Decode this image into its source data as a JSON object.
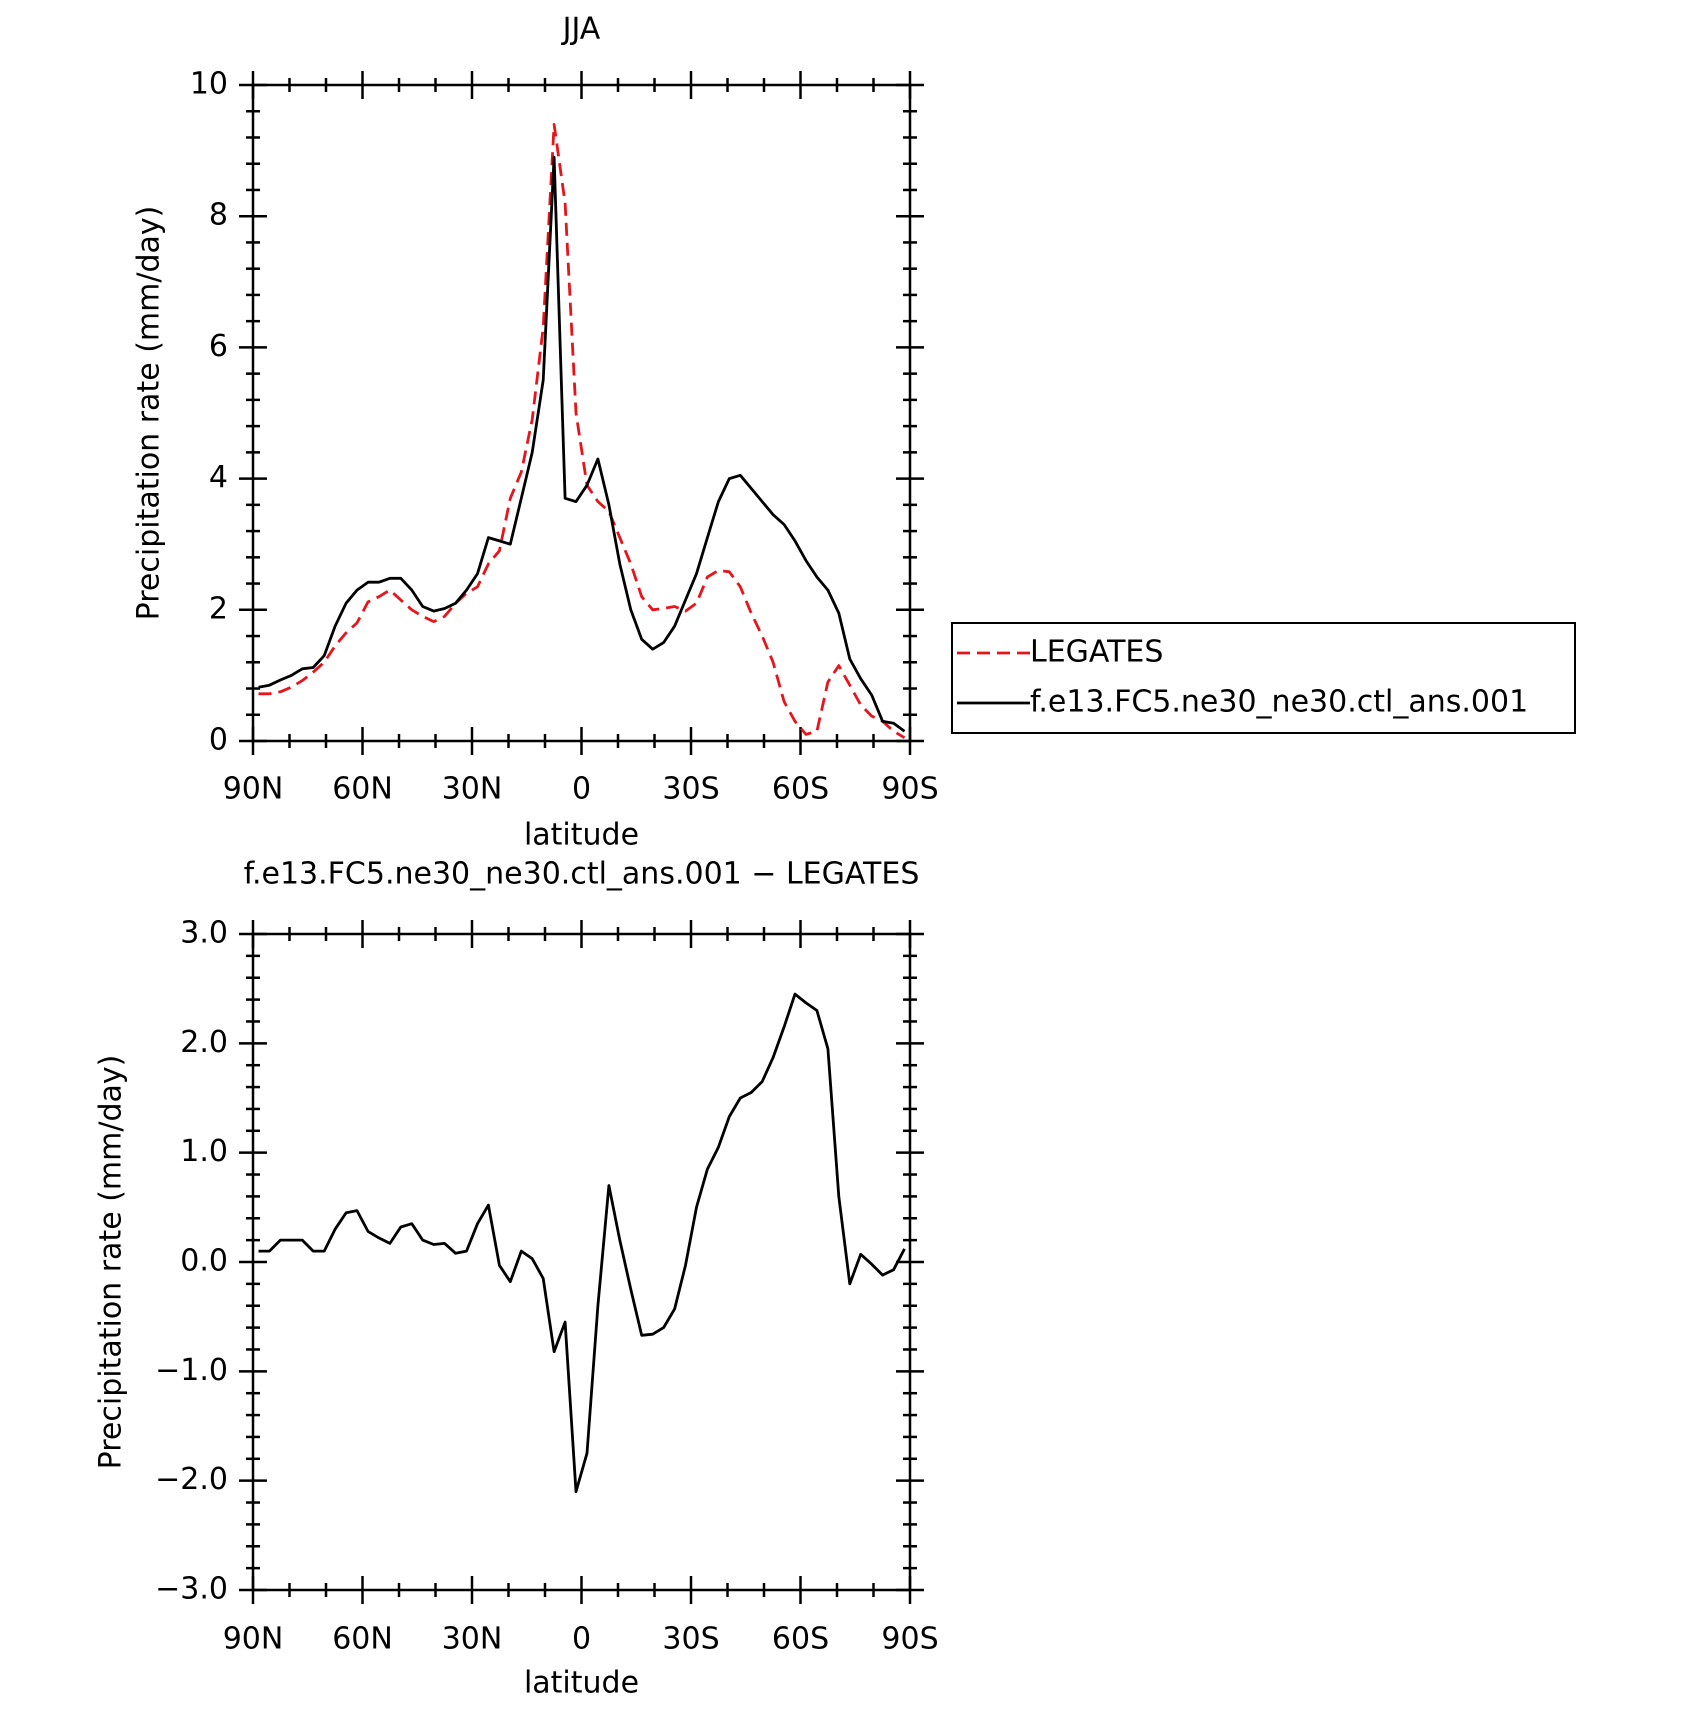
{
  "chart_data": [
    {
      "type": "line",
      "title": "JJA",
      "xlabel": "latitude",
      "ylabel": "Precipitation rate (mm/day)",
      "x": [
        88.5,
        85.5,
        82.5,
        79.5,
        76.5,
        73.5,
        70.5,
        67.5,
        64.5,
        61.5,
        58.5,
        55.5,
        52.5,
        49.5,
        46.5,
        43.5,
        40.5,
        37.5,
        34.5,
        31.5,
        28.5,
        25.5,
        22.5,
        19.5,
        16.5,
        13.5,
        10.5,
        7.5,
        4.5,
        1.5,
        -1.5,
        -4.5,
        -7.5,
        -10.5,
        -13.5,
        -16.5,
        -19.5,
        -22.5,
        -25.5,
        -28.5,
        -31.5,
        -34.5,
        -37.5,
        -40.5,
        -43.5,
        -46.5,
        -49.5,
        -52.5,
        -55.5,
        -58.5,
        -61.5,
        -64.5,
        -67.5,
        -70.5,
        -73.5,
        -76.5,
        -79.5,
        -82.5,
        -85.5,
        -88.5
      ],
      "series": [
        {
          "name": "LEGATES",
          "color": "#e8141b",
          "dashed": true,
          "values": [
            0.72,
            0.72,
            0.75,
            0.82,
            0.92,
            1.05,
            1.2,
            1.45,
            1.65,
            1.8,
            2.12,
            2.2,
            2.3,
            2.15,
            2.0,
            1.9,
            1.82,
            1.9,
            2.1,
            2.25,
            2.35,
            2.7,
            2.9,
            3.7,
            4.1,
            4.9,
            6.3,
            9.4,
            8.2,
            5.0,
            3.9,
            3.65,
            3.5,
            3.1,
            2.7,
            2.2,
            2.0,
            2.02,
            2.05,
            1.98,
            2.1,
            2.5,
            2.6,
            2.58,
            2.35,
            1.95,
            1.6,
            1.2,
            0.6,
            0.3,
            0.1,
            0.15,
            0.9,
            1.15,
            0.85,
            0.55,
            0.38,
            0.3,
            0.15,
            0.05
          ]
        },
        {
          "name": "f.e13.FC5.ne30_ne30.ctl_ans.001",
          "color": "#000000",
          "dashed": false,
          "values": [
            0.82,
            0.85,
            0.93,
            1.0,
            1.1,
            1.12,
            1.3,
            1.75,
            2.1,
            2.3,
            2.42,
            2.42,
            2.48,
            2.48,
            2.3,
            2.05,
            1.98,
            2.02,
            2.1,
            2.3,
            2.55,
            3.1,
            3.05,
            3.0,
            3.7,
            4.4,
            5.5,
            8.9,
            3.7,
            3.65,
            3.9,
            4.3,
            3.6,
            2.7,
            2.0,
            1.55,
            1.4,
            1.5,
            1.75,
            2.15,
            2.55,
            3.1,
            3.65,
            4.0,
            4.05,
            3.85,
            3.65,
            3.45,
            3.3,
            3.05,
            2.75,
            2.5,
            2.3,
            1.95,
            1.25,
            0.95,
            0.7,
            0.3,
            0.27,
            0.15
          ]
        }
      ],
      "xlim": [
        90,
        -90
      ],
      "xticks": [
        {
          "value": 90,
          "label": "90N"
        },
        {
          "value": 60,
          "label": "60N"
        },
        {
          "value": 30,
          "label": "30N"
        },
        0,
        {
          "value": -30,
          "label": "30S"
        },
        {
          "value": -60,
          "label": "60S"
        },
        {
          "value": -90,
          "label": "90S"
        }
      ],
      "ylim": [
        0,
        10
      ],
      "yticks": [
        0,
        2,
        4,
        6,
        8,
        10
      ],
      "legend": "right"
    },
    {
      "type": "line",
      "title": "f.e13.FC5.ne30_ne30.ctl_ans.001 − LEGATES",
      "xlabel": "latitude",
      "ylabel": "Precipitation rate (mm/day)",
      "x": [
        88.5,
        85.5,
        82.5,
        79.5,
        76.5,
        73.5,
        70.5,
        67.5,
        64.5,
        61.5,
        58.5,
        55.5,
        52.5,
        49.5,
        46.5,
        43.5,
        40.5,
        37.5,
        34.5,
        31.5,
        28.5,
        25.5,
        22.5,
        19.5,
        16.5,
        13.5,
        10.5,
        7.5,
        4.5,
        1.5,
        -1.5,
        -4.5,
        -7.5,
        -10.5,
        -13.5,
        -16.5,
        -19.5,
        -22.5,
        -25.5,
        -28.5,
        -31.5,
        -34.5,
        -37.5,
        -40.5,
        -43.5,
        -46.5,
        -49.5,
        -52.5,
        -55.5,
        -58.5,
        -61.5,
        -64.5,
        -67.5,
        -70.5,
        -73.5,
        -76.5,
        -79.5,
        -82.5,
        -85.5,
        -88.5
      ],
      "color": "#000000",
      "values": [
        0.1,
        0.1,
        0.2,
        0.2,
        0.2,
        0.1,
        0.1,
        0.3,
        0.45,
        0.47,
        0.28,
        0.22,
        0.17,
        0.32,
        0.35,
        0.2,
        0.16,
        0.17,
        0.08,
        0.1,
        0.35,
        0.52,
        -0.03,
        -0.18,
        0.1,
        0.03,
        -0.15,
        -0.82,
        -0.55,
        -2.1,
        -1.75,
        -0.4,
        0.7,
        0.2,
        -0.25,
        -0.67,
        -0.66,
        -0.6,
        -0.43,
        -0.03,
        0.5,
        0.85,
        1.05,
        1.33,
        1.5,
        1.55,
        1.65,
        1.87,
        2.15,
        2.45,
        2.37,
        2.3,
        1.95,
        0.6,
        -0.2,
        0.07,
        -0.02,
        -0.12,
        -0.07,
        0.12
      ],
      "xlim": [
        90,
        -90
      ],
      "xticks": [
        {
          "value": 90,
          "label": "90N"
        },
        {
          "value": 60,
          "label": "60N"
        },
        {
          "value": 30,
          "label": "30N"
        },
        0,
        {
          "value": -30,
          "label": "30S"
        },
        {
          "value": -60,
          "label": "60S"
        },
        {
          "value": -90,
          "label": "90S"
        }
      ],
      "ylim": [
        -3,
        3
      ],
      "yticks": [
        {
          "value": -3,
          "label": "−3.0"
        },
        {
          "value": -2,
          "label": "−2.0"
        },
        {
          "value": -1,
          "label": "−1.0"
        },
        {
          "value": 0,
          "label": "0.0"
        },
        {
          "value": 1,
          "label": "1.0"
        },
        {
          "value": 2,
          "label": "2.0"
        },
        {
          "value": 3,
          "label": "3.0"
        }
      ]
    }
  ]
}
